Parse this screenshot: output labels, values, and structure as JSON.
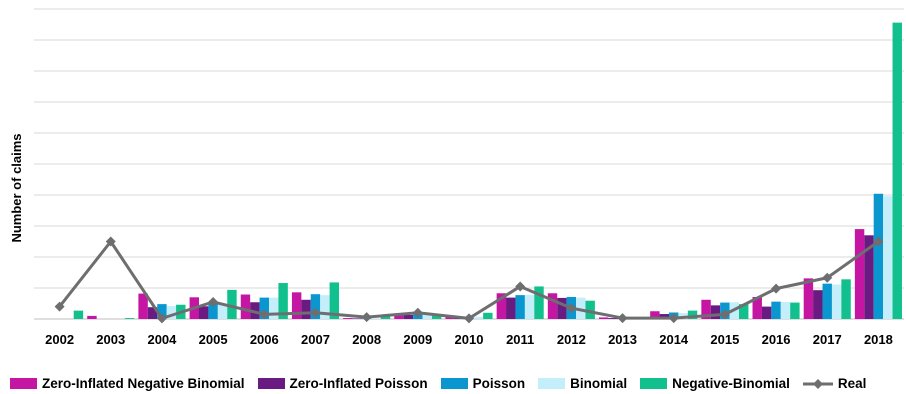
{
  "chart_data": {
    "type": "bar",
    "ylabel": "Number of claims",
    "xlabel": "",
    "categories": [
      "2002",
      "2003",
      "2004",
      "2005",
      "2006",
      "2007",
      "2008",
      "2009",
      "2010",
      "2011",
      "2012",
      "2013",
      "2014",
      "2015",
      "2016",
      "2017",
      "2018"
    ],
    "ylim": [
      0,
      100
    ],
    "grid": true,
    "legend_position": "bottom",
    "series": [
      {
        "name": "Zero-Inflated Negative Binomial",
        "type": "bar",
        "color": "#C415A3",
        "values": [
          0.0,
          1.0,
          8.2,
          7.0,
          7.9,
          8.6,
          0.3,
          1.7,
          0.8,
          8.3,
          8.3,
          0.5,
          2.5,
          6.2,
          7.1,
          13.1,
          29.0
        ]
      },
      {
        "name": "Zero-Inflated Poisson",
        "type": "bar",
        "color": "#6A1B82",
        "values": [
          0.0,
          0.0,
          3.8,
          4.1,
          5.4,
          6.2,
          0.2,
          1.3,
          0.5,
          6.9,
          6.8,
          0.3,
          1.6,
          4.4,
          4.0,
          9.3,
          27.0
        ]
      },
      {
        "name": "Poisson",
        "type": "bar",
        "color": "#0A96CF",
        "values": [
          0.0,
          0.0,
          4.8,
          4.9,
          6.9,
          8.0,
          0.2,
          2.0,
          0.7,
          7.7,
          7.1,
          0.3,
          2.1,
          5.3,
          5.6,
          11.4,
          40.4
        ]
      },
      {
        "name": "Binomial",
        "type": "bar",
        "color": "#C4EEFA",
        "values": [
          0.0,
          0.0,
          4.2,
          4.6,
          6.9,
          7.7,
          0.2,
          1.9,
          0.7,
          7.8,
          6.9,
          0.3,
          1.9,
          5.4,
          5.5,
          11.1,
          39.6
        ]
      },
      {
        "name": "Negative-Binomial",
        "type": "bar",
        "color": "#12C08E",
        "values": [
          2.7,
          0.3,
          4.6,
          9.4,
          11.6,
          11.8,
          1.2,
          1.3,
          2.0,
          10.5,
          5.9,
          0.3,
          2.7,
          4.8,
          5.3,
          12.8,
          95.6
        ]
      },
      {
        "name": "Real",
        "type": "line",
        "color": "#6E6E70",
        "values": [
          4.0,
          25.0,
          0.2,
          5.5,
          1.5,
          2.0,
          0.6,
          2.0,
          0.2,
          10.5,
          3.5,
          0.3,
          0.3,
          1.5,
          9.8,
          13.3,
          25.0
        ]
      }
    ]
  }
}
